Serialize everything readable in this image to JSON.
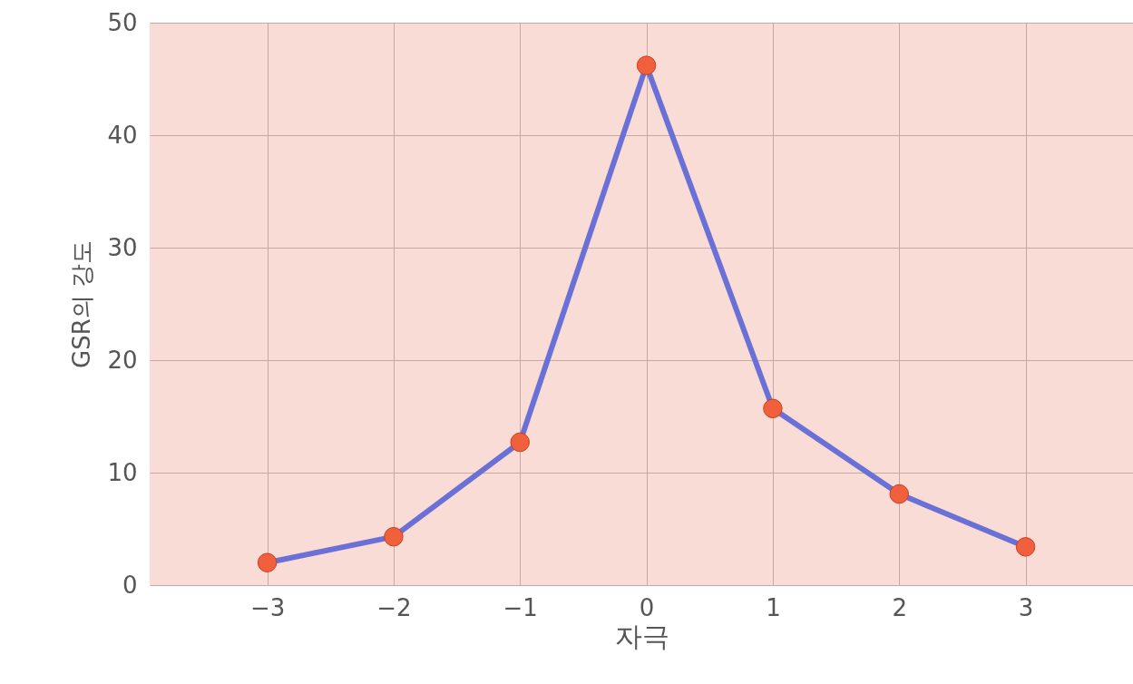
{
  "chart_data": {
    "type": "line",
    "xlabel": "자극",
    "ylabel": "GSR의 강도",
    "x": [
      -3,
      -2,
      -1,
      0,
      1,
      2,
      3
    ],
    "series": [
      {
        "color": "#6b70d6",
        "values": [
          2.0,
          4.3,
          12.7,
          46.2,
          15.7,
          8.1,
          3.4
        ]
      }
    ],
    "xlim": [
      -3.93,
      3.85
    ],
    "xticks": [
      -3,
      -2,
      -1,
      0,
      1,
      2,
      3
    ],
    "ylim": [
      0,
      50
    ],
    "yticks": [
      0,
      10,
      20,
      30,
      40,
      50
    ],
    "grid": true,
    "marker": "circle",
    "line_style": "solid"
  }
}
